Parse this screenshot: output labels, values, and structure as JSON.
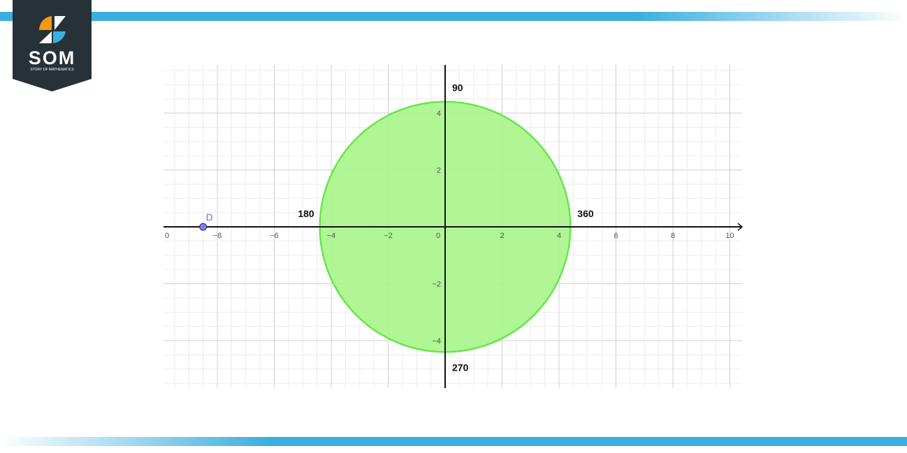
{
  "logo": {
    "text": "SOM",
    "subtitle": "STORY OF MATHEMATICS"
  },
  "colors": {
    "band": "#3aaede",
    "logo_bg": "#263238",
    "logo_orange": "#f59a0c",
    "logo_blue": "#3aaede",
    "circle_fill": "#a8f58a",
    "circle_stroke": "#66e84a",
    "point": "#7b7ef0"
  },
  "graph": {
    "x_range": [
      -10,
      10
    ],
    "y_range": [
      -5.5,
      5.5
    ],
    "grid": true,
    "minor_step": 0.5,
    "x_tick_labels": [
      {
        "v": -8,
        "t": "−8"
      },
      {
        "v": -6,
        "t": "−6"
      },
      {
        "v": -4,
        "t": "−4"
      },
      {
        "v": -2,
        "t": "−2"
      },
      {
        "v": 0,
        "t": "0"
      },
      {
        "v": 2,
        "t": "2"
      },
      {
        "v": 4,
        "t": "4"
      },
      {
        "v": 6,
        "t": "6"
      },
      {
        "v": 8,
        "t": "8"
      },
      {
        "v": 10,
        "t": "10"
      }
    ],
    "x_left_label": "0",
    "y_tick_labels": [
      {
        "v": 4,
        "t": "4"
      },
      {
        "v": 2,
        "t": "2"
      },
      {
        "v": -2,
        "t": "−2"
      },
      {
        "v": -4,
        "t": "−4"
      }
    ],
    "circle": {
      "center": [
        0,
        0
      ],
      "radius": 4.4
    },
    "point": {
      "label": "D",
      "x": -8.5,
      "y": 0
    },
    "angle_labels": {
      "a90": "90",
      "a180": "180",
      "a270": "270",
      "a360": "360"
    }
  }
}
